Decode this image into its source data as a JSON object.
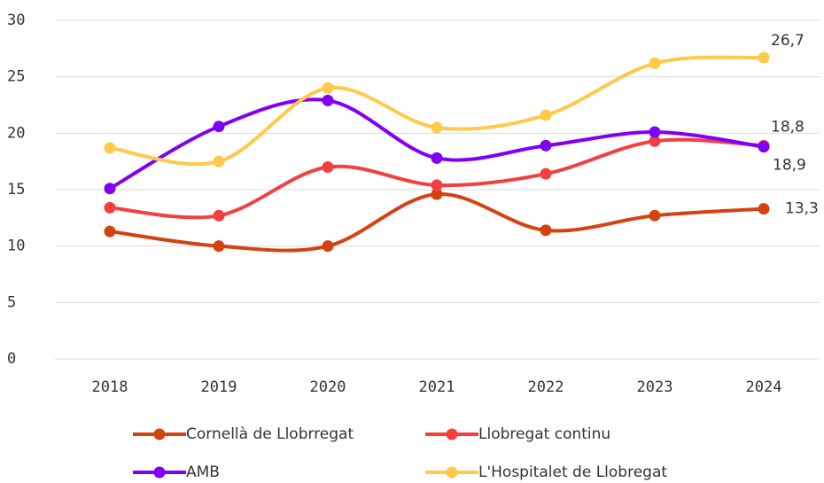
{
  "chart_data": {
    "type": "line",
    "categories": [
      "2018",
      "2019",
      "2020",
      "2021",
      "2022",
      "2023",
      "2024"
    ],
    "series": [
      {
        "name": "Cornellà de Llobrregat",
        "color": "#d4420f",
        "values": [
          11.3,
          10.0,
          10.0,
          14.6,
          11.4,
          12.7,
          13.3
        ],
        "value_labels": [
          null,
          null,
          null,
          null,
          null,
          null,
          "13,3"
        ]
      },
      {
        "name": "Llobregat continu",
        "color": "#f43f3f",
        "values": [
          13.4,
          12.7,
          17.0,
          15.4,
          16.4,
          19.3,
          18.9
        ],
        "value_labels": [
          null,
          null,
          null,
          null,
          null,
          null,
          "18,9"
        ]
      },
      {
        "name": "AMB",
        "color": "#8000f5",
        "values": [
          15.1,
          20.6,
          22.9,
          17.8,
          18.9,
          20.1,
          18.8
        ],
        "value_labels": [
          null,
          null,
          null,
          null,
          null,
          null,
          "18,8"
        ]
      },
      {
        "name": "L'Hospitalet de Llobregat",
        "color": "#ffc94a",
        "values": [
          18.7,
          17.5,
          24.0,
          20.5,
          21.6,
          26.2,
          26.7
        ],
        "value_labels": [
          null,
          null,
          null,
          null,
          null,
          null,
          "26,7"
        ]
      }
    ],
    "ylim": [
      0,
      30
    ],
    "yticks": [
      0,
      5,
      10,
      15,
      20,
      25,
      30
    ],
    "grid": true,
    "legend": "bottom"
  }
}
